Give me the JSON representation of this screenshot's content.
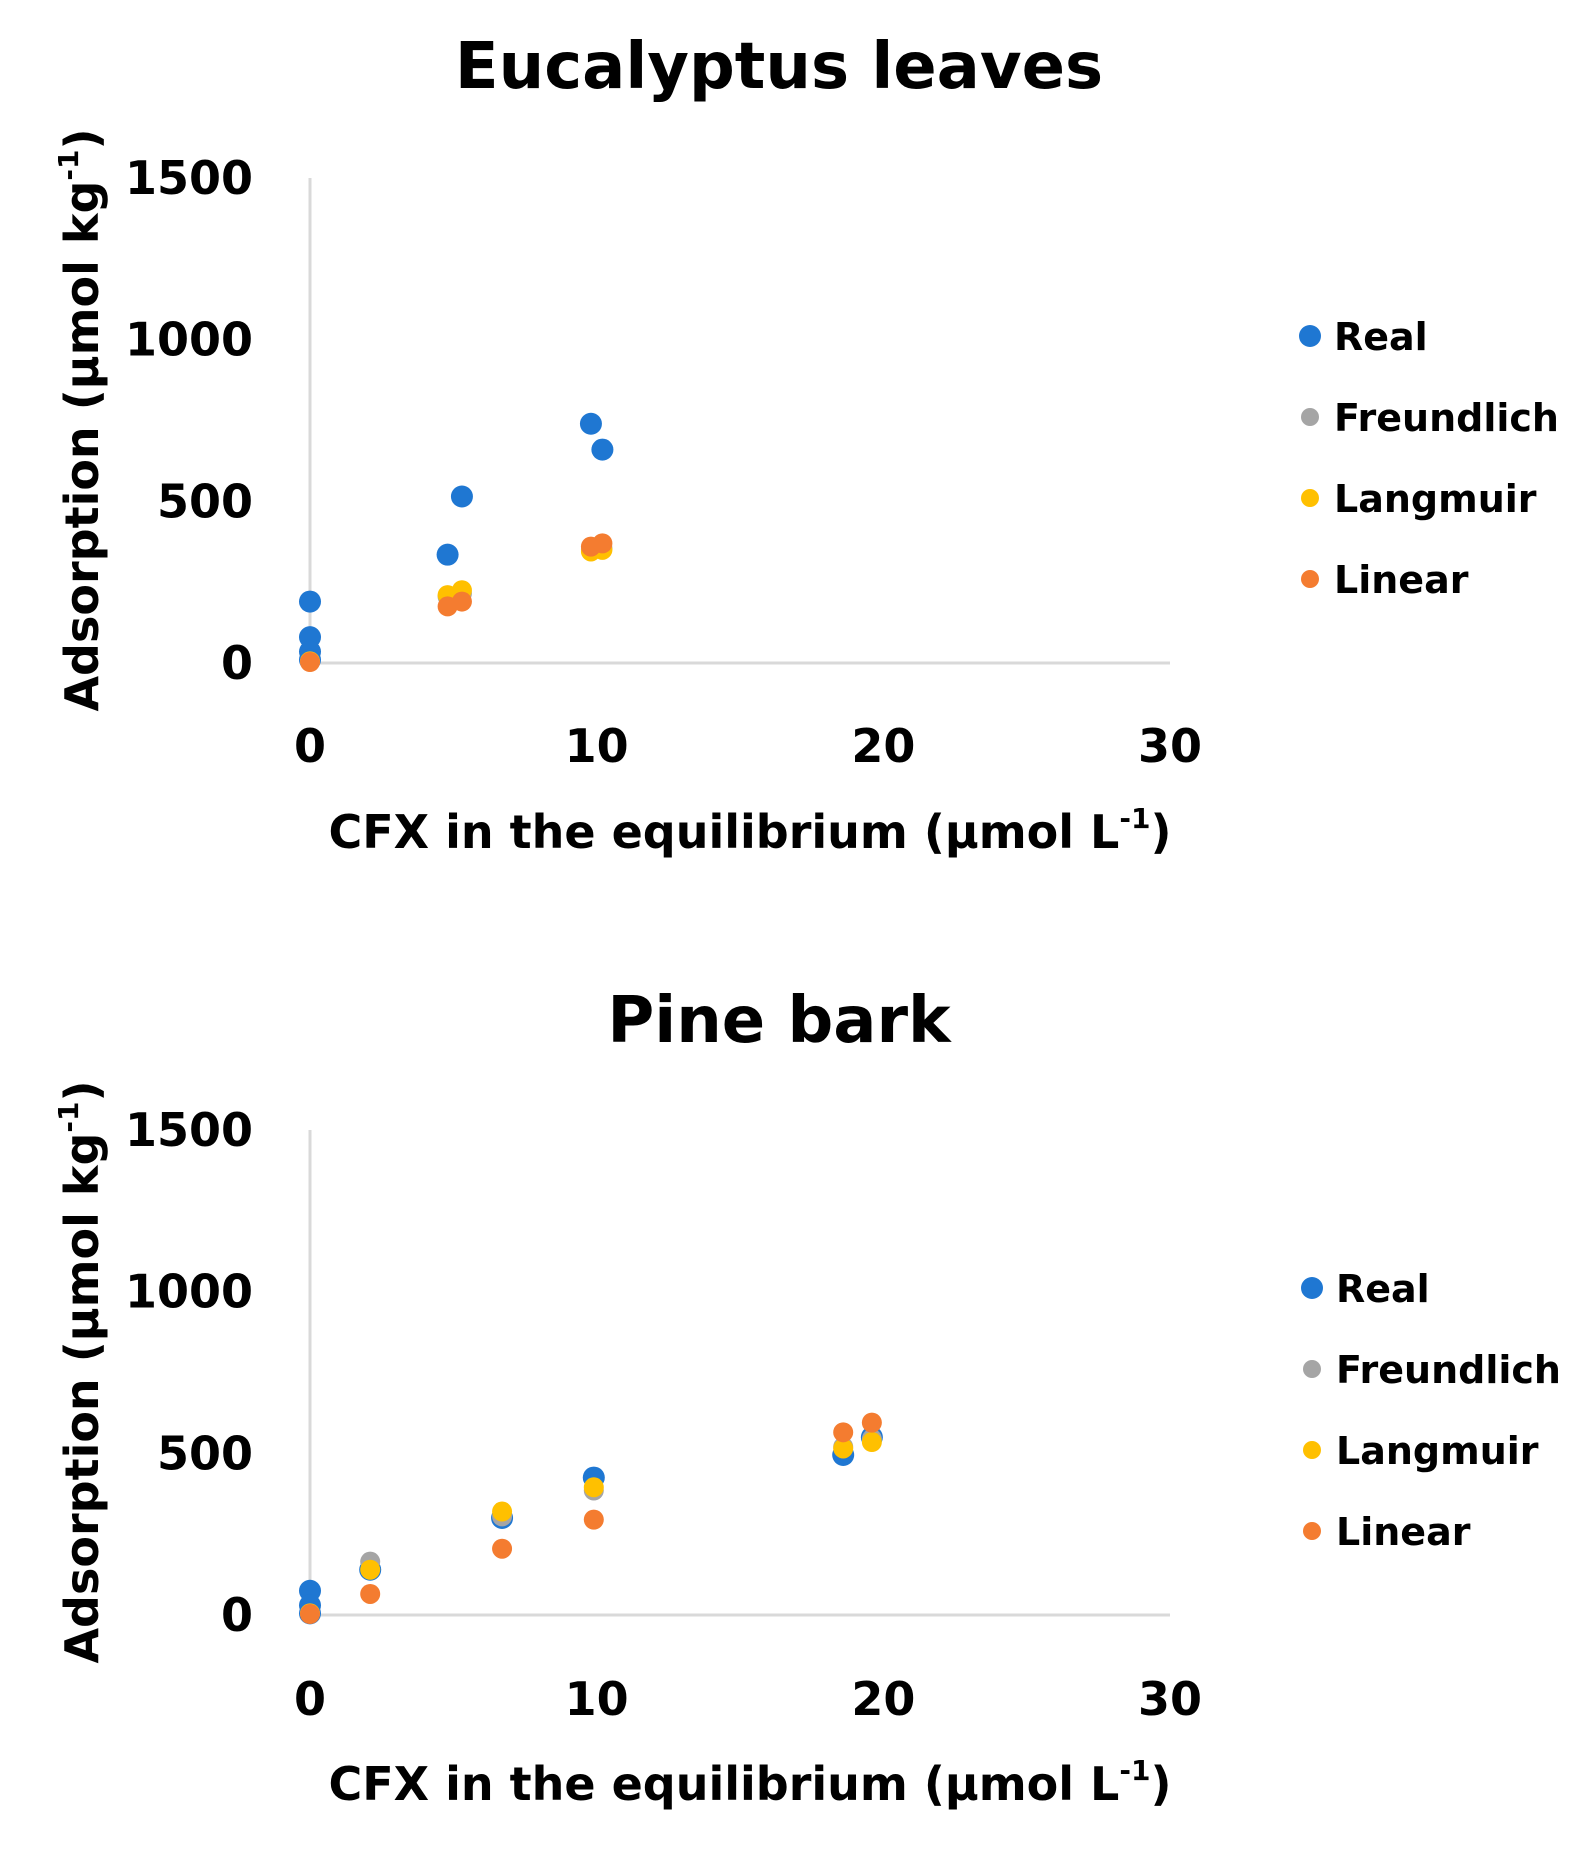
{
  "chart_data": [
    {
      "type": "scatter",
      "title": "Eucalyptus leaves",
      "xlabel": "CFX in the equilibrium (µmol L",
      "xlabel_sup": "-1",
      "xlabel_end": ")",
      "ylabel": "Adsorption (µmol kg",
      "ylabel_sup": "-1",
      "ylabel_end": ")",
      "xlim": [
        0,
        30
      ],
      "ylim": [
        0,
        1500
      ],
      "xticks": [
        "0",
        "10",
        "20",
        "30"
      ],
      "yticks": [
        "0",
        "500",
        "1000",
        "1500"
      ],
      "legend_position": "right",
      "series": [
        {
          "name": "Real",
          "color": "#1f77d2",
          "points": [
            [
              0,
              190
            ],
            [
              0,
              80
            ],
            [
              0,
              35
            ],
            [
              0,
              10
            ],
            [
              4.8,
              335
            ],
            [
              5.3,
              515
            ],
            [
              9.8,
              740
            ],
            [
              10.2,
              660
            ]
          ]
        },
        {
          "name": "Freundlich",
          "color": "#a5a5a5",
          "points": [
            [
              0,
              5
            ],
            [
              4.8,
              205
            ],
            [
              5.3,
              215
            ],
            [
              9.8,
              350
            ],
            [
              10.2,
              355
            ]
          ]
        },
        {
          "name": "Langmuir",
          "color": "#ffc000",
          "points": [
            [
              0,
              5
            ],
            [
              4.8,
              210
            ],
            [
              5.3,
              225
            ],
            [
              9.8,
              345
            ],
            [
              10.2,
              350
            ]
          ]
        },
        {
          "name": "Linear",
          "color": "#f47c30",
          "points": [
            [
              0,
              3
            ],
            [
              4.8,
              175
            ],
            [
              5.3,
              190
            ],
            [
              9.8,
              360
            ],
            [
              10.2,
              370
            ]
          ]
        }
      ]
    },
    {
      "type": "scatter",
      "title": "Pine bark",
      "xlabel": "CFX in the equilibrium (µmol L",
      "xlabel_sup": "-1",
      "xlabel_end": ")",
      "ylabel": "Adsorption (µmol kg",
      "ylabel_sup": "-1",
      "ylabel_end": ")",
      "xlim": [
        0,
        30
      ],
      "ylim": [
        0,
        1500
      ],
      "xticks": [
        "0",
        "10",
        "20",
        "30"
      ],
      "yticks": [
        "0",
        "500",
        "1000",
        "1500"
      ],
      "legend_position": "right",
      "series": [
        {
          "name": "Real",
          "color": "#1f77d2",
          "points": [
            [
              0,
              75
            ],
            [
              0,
              30
            ],
            [
              0,
              5
            ],
            [
              2.1,
              140
            ],
            [
              6.7,
              300
            ],
            [
              9.9,
              425
            ],
            [
              18.6,
              495
            ],
            [
              19.6,
              550
            ]
          ]
        },
        {
          "name": "Freundlich",
          "color": "#a5a5a5",
          "points": [
            [
              0,
              5
            ],
            [
              2.1,
              165
            ],
            [
              6.7,
              305
            ],
            [
              9.9,
              385
            ],
            [
              18.6,
              520
            ],
            [
              19.6,
              545
            ]
          ]
        },
        {
          "name": "Langmuir",
          "color": "#ffc000",
          "points": [
            [
              0,
              5
            ],
            [
              2.1,
              140
            ],
            [
              6.7,
              320
            ],
            [
              9.9,
              395
            ],
            [
              18.6,
              515
            ],
            [
              19.6,
              535
            ]
          ]
        },
        {
          "name": "Linear",
          "color": "#f47c30",
          "points": [
            [
              0,
              3
            ],
            [
              2.1,
              65
            ],
            [
              6.7,
              205
            ],
            [
              9.9,
              295
            ],
            [
              18.6,
              565
            ],
            [
              19.6,
              595
            ]
          ]
        }
      ]
    }
  ]
}
